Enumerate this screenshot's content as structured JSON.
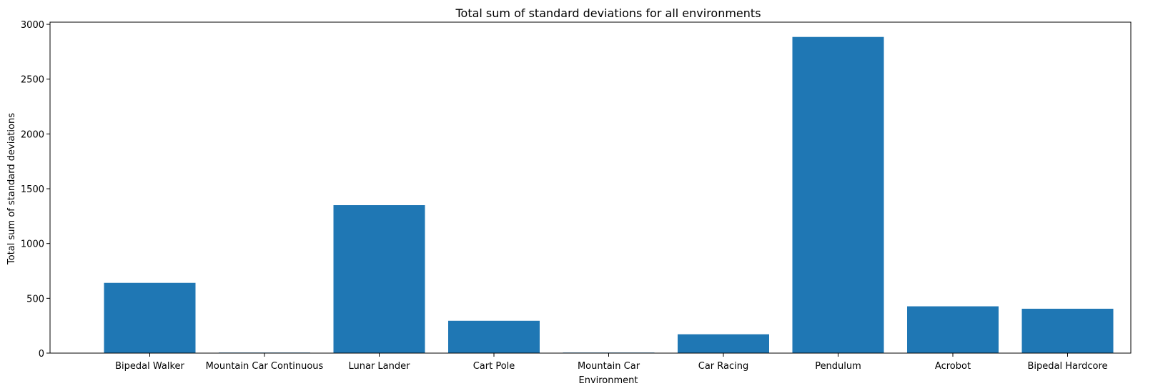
{
  "chart_data": {
    "type": "bar",
    "title": "Total sum of standard deviations for all environments",
    "xlabel": "Environment",
    "ylabel": "Total sum of standard deviations",
    "categories": [
      "Bipedal Walker",
      "Mountain Car Continuous",
      "Lunar Lander",
      "Cart Pole",
      "Mountain Car",
      "Car Racing",
      "Pendulum",
      "Acrobot",
      "Bipedal Hardcore"
    ],
    "values": [
      641,
      5,
      1350,
      295,
      5,
      172,
      2885,
      427,
      405
    ],
    "ylim": [
      0,
      3000
    ],
    "yticks": [
      0,
      500,
      1000,
      1500,
      2000,
      2500,
      3000
    ],
    "grid": false,
    "bar_color": "#1f77b4"
  }
}
